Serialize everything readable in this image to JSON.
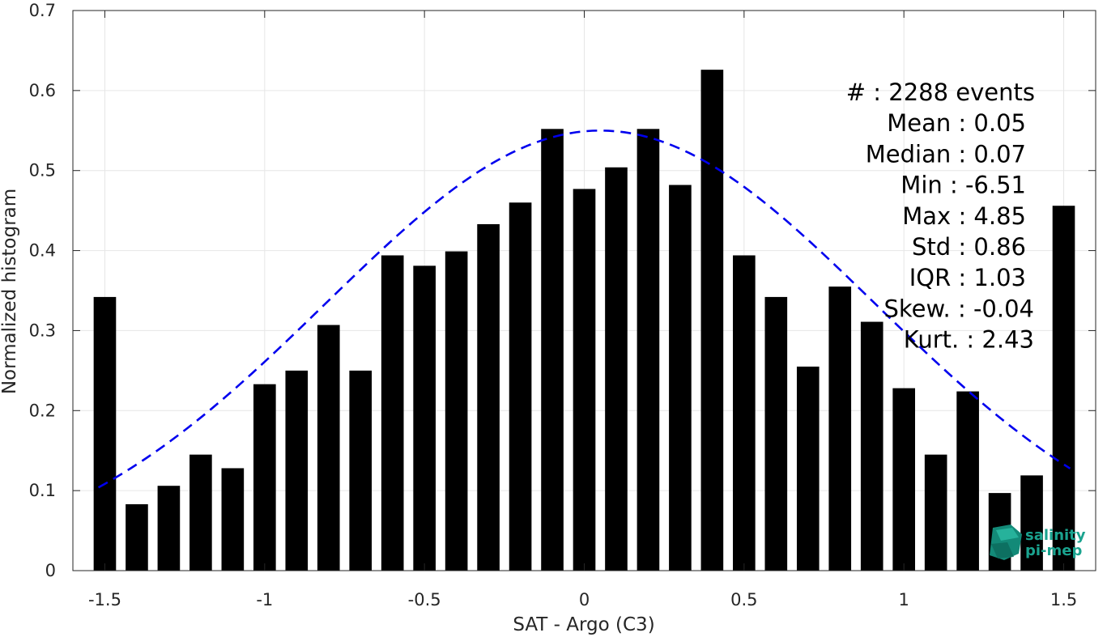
{
  "chart_data": {
    "type": "bar",
    "xlabel": "SAT - Argo (C3)",
    "ylabel": "Normalized histogram",
    "xlim": [
      -1.6,
      1.6
    ],
    "ylim": [
      0,
      0.7
    ],
    "grid": true,
    "x_ticks": [
      -1.5,
      -1,
      -0.5,
      0,
      0.5,
      1,
      1.5
    ],
    "x_tick_labels": [
      "-1.5",
      "-1",
      "-0.5",
      "0",
      "0.5",
      "1",
      "1.5"
    ],
    "y_ticks": [
      0,
      0.1,
      0.2,
      0.3,
      0.4,
      0.5,
      0.6,
      0.7
    ],
    "y_tick_labels": [
      "0",
      "0.1",
      "0.2",
      "0.3",
      "0.4",
      "0.5",
      "0.6",
      "0.7"
    ],
    "bar_color": "#000000",
    "bar_width": 0.07,
    "x": [
      -1.5,
      -1.4,
      -1.3,
      -1.2,
      -1.1,
      -1.0,
      -0.9,
      -0.8,
      -0.7,
      -0.6,
      -0.5,
      -0.4,
      -0.3,
      -0.2,
      -0.1,
      0.0,
      0.1,
      0.2,
      0.3,
      0.4,
      0.5,
      0.6,
      0.7,
      0.8,
      0.9,
      1.0,
      1.1,
      1.2,
      1.3,
      1.4,
      1.5
    ],
    "values": [
      0.342,
      0.083,
      0.106,
      0.145,
      0.128,
      0.233,
      0.25,
      0.307,
      0.25,
      0.394,
      0.381,
      0.399,
      0.433,
      0.46,
      0.552,
      0.477,
      0.504,
      0.552,
      0.482,
      0.626,
      0.394,
      0.342,
      0.255,
      0.355,
      0.311,
      0.228,
      0.145,
      0.224,
      0.097,
      0.119,
      0.456
    ],
    "fit_curve": {
      "style": "dashed",
      "color": "#0000ee",
      "mean": 0.05,
      "peak": 0.55,
      "std": 0.86,
      "x_range": [
        -1.52,
        1.52
      ]
    },
    "stats": [
      "#  : 2288 events",
      "Mean : 0.05",
      "Median : 0.07",
      "Min : -6.51",
      "Max : 4.85",
      "Std : 0.86",
      "IQR : 1.03",
      "Skew. : -0.04",
      "Kurt. : 2.43"
    ]
  },
  "logo": {
    "line1": "salinity",
    "line2": "pi-mep",
    "text_color": "#1aa38f",
    "mark_color": "#138a78"
  }
}
